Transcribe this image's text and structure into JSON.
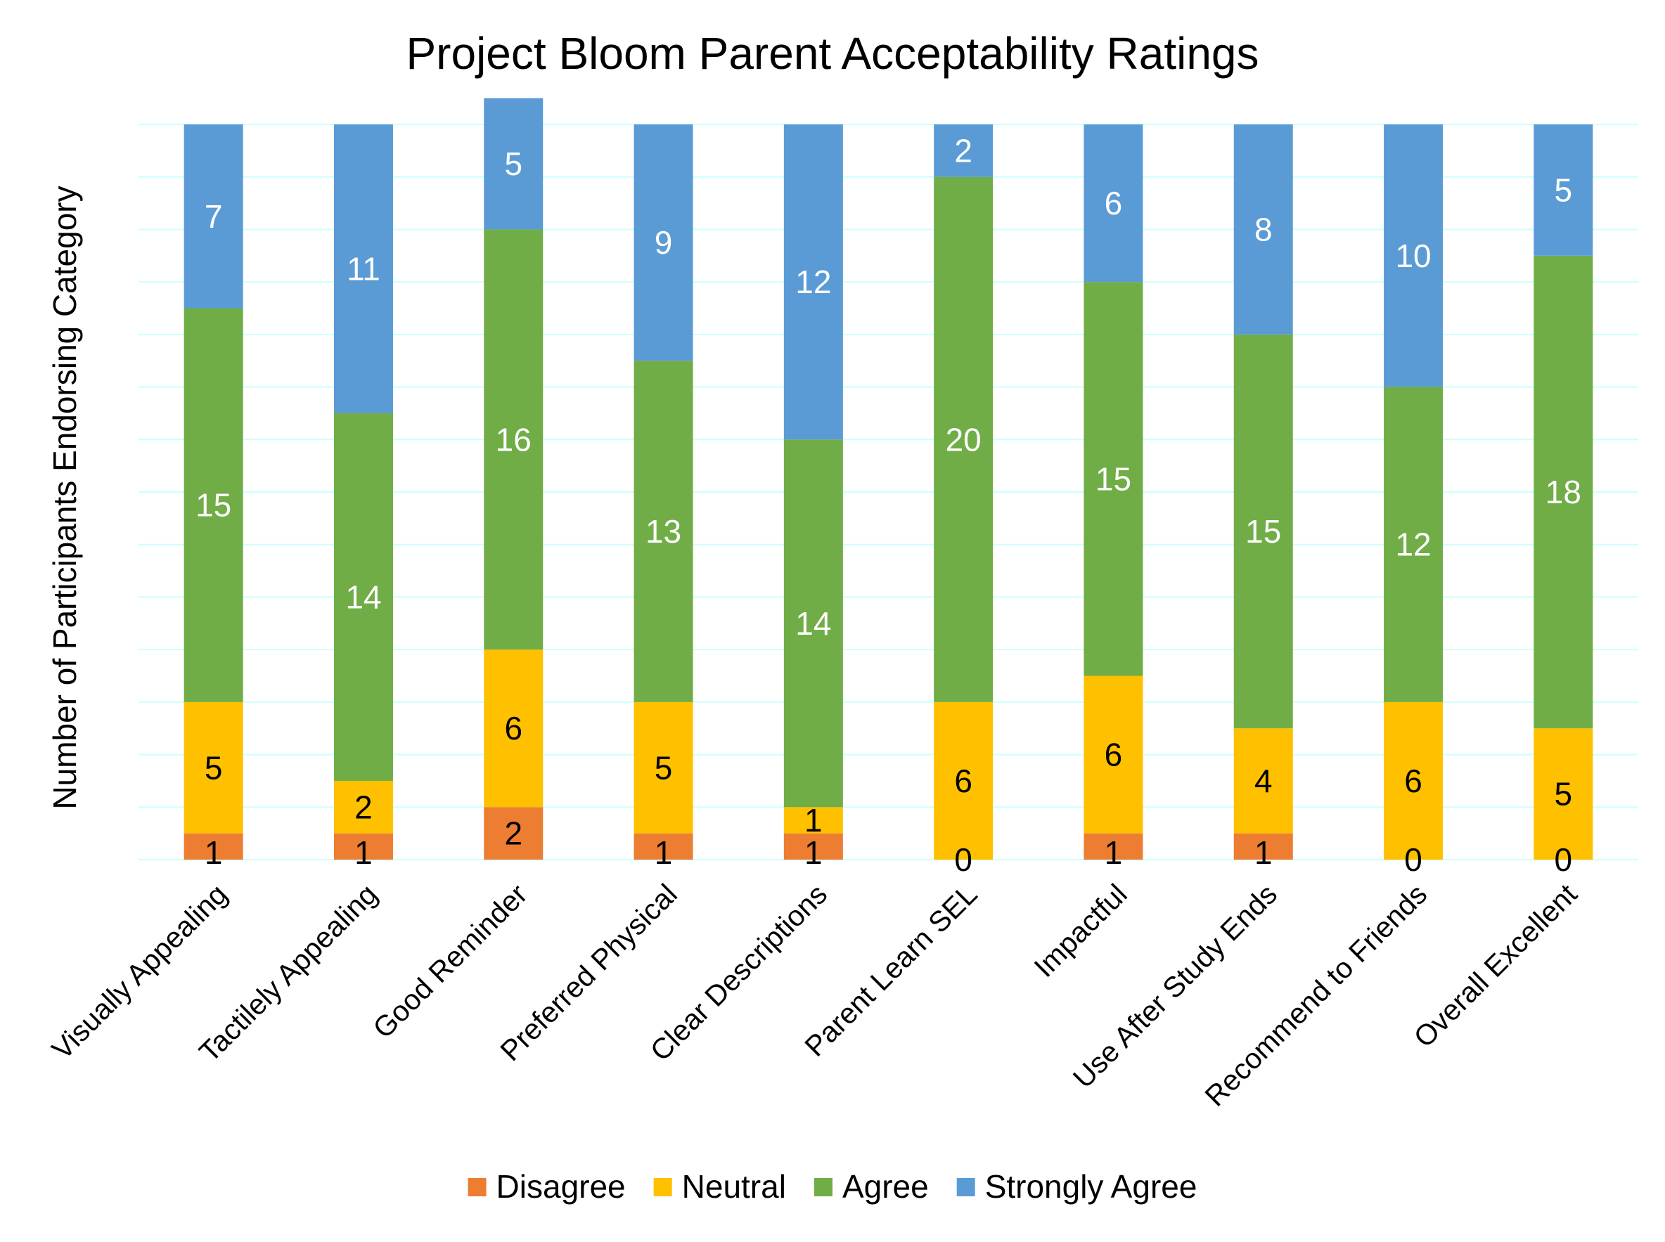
{
  "chart_data": {
    "type": "bar",
    "stacked": true,
    "title": "Project Bloom Parent Acceptability Ratings",
    "xlabel": "",
    "ylabel": "Number of Participants Endorsing Category",
    "ylim": [
      0,
      28
    ],
    "grid": true,
    "legend_position": "bottom",
    "categories": [
      "Visually Appealing",
      "Tactilely Appealing",
      "Good Reminder",
      "Preferred Physical",
      "Clear Descriptions",
      "Parent Learn SEL",
      "Impactful",
      "Use After Study Ends",
      "Recommend to Friends",
      "Overall Excellent"
    ],
    "series": [
      {
        "name": "Disagree",
        "color": "#ED7D31",
        "label_color": "#000000",
        "values": [
          1,
          1,
          2,
          1,
          1,
          0,
          1,
          1,
          0,
          0
        ]
      },
      {
        "name": "Neutral",
        "color": "#FFC000",
        "label_color": "#000000",
        "values": [
          5,
          2,
          6,
          5,
          1,
          6,
          6,
          4,
          6,
          5
        ]
      },
      {
        "name": "Agree",
        "color": "#70AD47",
        "label_color": "#FFFFFF",
        "values": [
          15,
          14,
          16,
          13,
          14,
          20,
          15,
          15,
          12,
          18
        ]
      },
      {
        "name": "Strongly Agree",
        "color": "#5B9BD5",
        "label_color": "#FFFFFF",
        "values": [
          7,
          11,
          5,
          9,
          12,
          2,
          6,
          8,
          10,
          5
        ]
      }
    ],
    "colors": {
      "gridline": "#CCFFFF"
    }
  }
}
